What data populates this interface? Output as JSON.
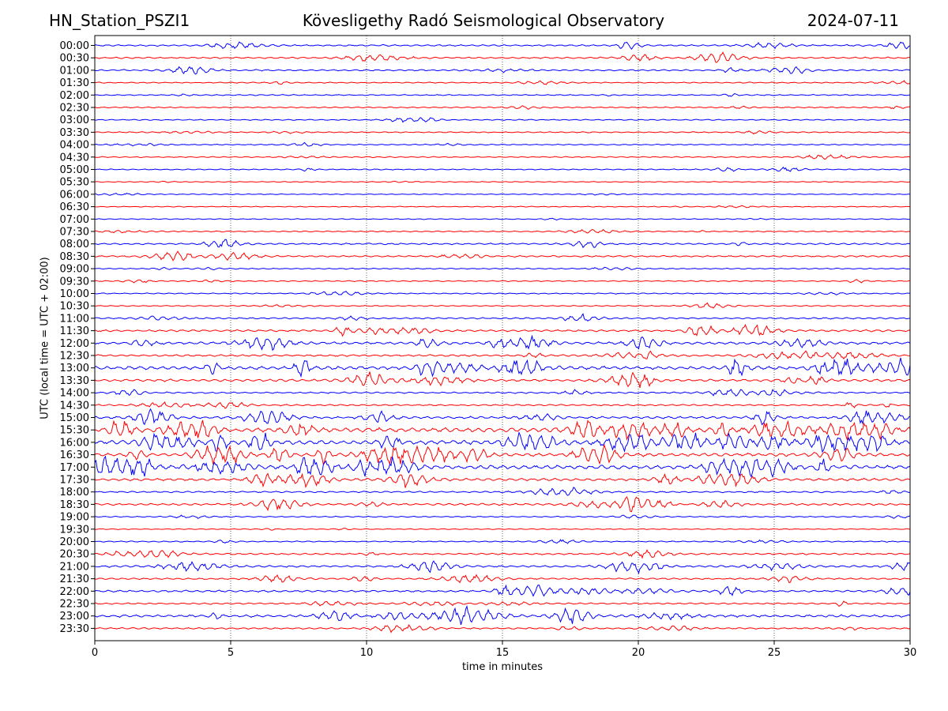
{
  "header": {
    "station": "HN_Station_PSZI1",
    "observatory": "Kövesligethy Radó Seismological Observatory",
    "date": "2024-07-11"
  },
  "chart_data": {
    "type": "line",
    "title": "Kövesligethy Radó Seismological Observatory",
    "xlabel": "time in minutes",
    "ylabel": "UTC (local time = UTC + 02:00)",
    "xlim": [
      0,
      30
    ],
    "x_ticks": [
      0,
      5,
      10,
      15,
      20,
      25,
      30
    ],
    "grid": "vertical dotted lines at x ticks",
    "colors": [
      "#0000ff",
      "#ff0000"
    ],
    "rows": [
      {
        "label": "00:00",
        "color": "#0000ff",
        "amplitude": 2
      },
      {
        "label": "00:30",
        "color": "#ff0000",
        "amplitude": 2
      },
      {
        "label": "01:00",
        "color": "#0000ff",
        "amplitude": 2
      },
      {
        "label": "01:30",
        "color": "#ff0000",
        "amplitude": 1
      },
      {
        "label": "02:00",
        "color": "#0000ff",
        "amplitude": 1
      },
      {
        "label": "02:30",
        "color": "#ff0000",
        "amplitude": 1
      },
      {
        "label": "03:00",
        "color": "#0000ff",
        "amplitude": 1
      },
      {
        "label": "03:30",
        "color": "#ff0000",
        "amplitude": 1
      },
      {
        "label": "04:00",
        "color": "#0000ff",
        "amplitude": 1
      },
      {
        "label": "04:30",
        "color": "#ff0000",
        "amplitude": 1
      },
      {
        "label": "05:00",
        "color": "#0000ff",
        "amplitude": 1
      },
      {
        "label": "05:30",
        "color": "#ff0000",
        "amplitude": 0.5
      },
      {
        "label": "06:00",
        "color": "#0000ff",
        "amplitude": 0.5
      },
      {
        "label": "06:30",
        "color": "#ff0000",
        "amplitude": 0.5
      },
      {
        "label": "07:00",
        "color": "#0000ff",
        "amplitude": 0.5
      },
      {
        "label": "07:30",
        "color": "#ff0000",
        "amplitude": 1
      },
      {
        "label": "08:00",
        "color": "#0000ff",
        "amplitude": 2
      },
      {
        "label": "08:30",
        "color": "#ff0000",
        "amplitude": 2
      },
      {
        "label": "09:00",
        "color": "#0000ff",
        "amplitude": 1
      },
      {
        "label": "09:30",
        "color": "#ff0000",
        "amplitude": 1
      },
      {
        "label": "10:00",
        "color": "#0000ff",
        "amplitude": 1
      },
      {
        "label": "10:30",
        "color": "#ff0000",
        "amplitude": 1
      },
      {
        "label": "11:00",
        "color": "#0000ff",
        "amplitude": 2
      },
      {
        "label": "11:30",
        "color": "#ff0000",
        "amplitude": 3
      },
      {
        "label": "12:00",
        "color": "#0000ff",
        "amplitude": 4
      },
      {
        "label": "12:30",
        "color": "#ff0000",
        "amplitude": 3
      },
      {
        "label": "13:00",
        "color": "#0000ff",
        "amplitude": 6
      },
      {
        "label": "13:30",
        "color": "#ff0000",
        "amplitude": 4
      },
      {
        "label": "14:00",
        "color": "#0000ff",
        "amplitude": 2
      },
      {
        "label": "14:30",
        "color": "#ff0000",
        "amplitude": 2
      },
      {
        "label": "15:00",
        "color": "#0000ff",
        "amplitude": 4
      },
      {
        "label": "15:30",
        "color": "#ff0000",
        "amplitude": 8
      },
      {
        "label": "16:00",
        "color": "#0000ff",
        "amplitude": 8
      },
      {
        "label": "16:30",
        "color": "#ff0000",
        "amplitude": 6
      },
      {
        "label": "17:00",
        "color": "#0000ff",
        "amplitude": 7
      },
      {
        "label": "17:30",
        "color": "#ff0000",
        "amplitude": 4
      },
      {
        "label": "18:00",
        "color": "#0000ff",
        "amplitude": 2
      },
      {
        "label": "18:30",
        "color": "#ff0000",
        "amplitude": 3
      },
      {
        "label": "19:00",
        "color": "#0000ff",
        "amplitude": 1
      },
      {
        "label": "19:30",
        "color": "#ff0000",
        "amplitude": 0.5
      },
      {
        "label": "20:00",
        "color": "#0000ff",
        "amplitude": 1
      },
      {
        "label": "20:30",
        "color": "#ff0000",
        "amplitude": 2
      },
      {
        "label": "21:00",
        "color": "#0000ff",
        "amplitude": 3
      },
      {
        "label": "21:30",
        "color": "#ff0000",
        "amplitude": 2
      },
      {
        "label": "22:00",
        "color": "#0000ff",
        "amplitude": 3
      },
      {
        "label": "22:30",
        "color": "#ff0000",
        "amplitude": 2
      },
      {
        "label": "23:00",
        "color": "#0000ff",
        "amplitude": 4
      },
      {
        "label": "23:30",
        "color": "#ff0000",
        "amplitude": 2
      }
    ]
  }
}
